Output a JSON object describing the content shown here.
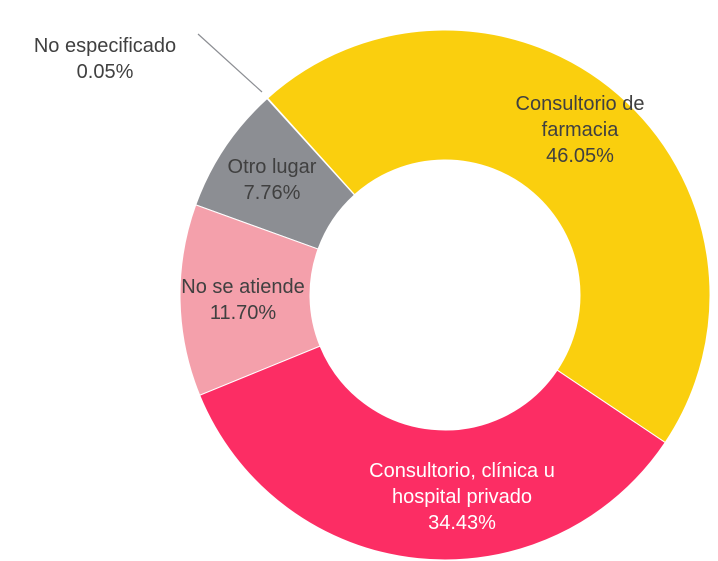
{
  "chart_data": {
    "type": "donut",
    "categories": [
      "Consultorio de farmacia",
      "Consultorio, clínica u hospital privado",
      "No se atiende",
      "Otro lugar",
      "No especificado"
    ],
    "values": [
      46.05,
      34.43,
      11.7,
      7.76,
      0.05
    ],
    "value_labels": [
      "46.05%",
      "34.43%",
      "11.70%",
      "7.76%",
      "0.05%"
    ],
    "colors": [
      "#facf0e",
      "#fc2d64",
      "#f4a0ab",
      "#8c8e93",
      "#595959"
    ]
  }
}
